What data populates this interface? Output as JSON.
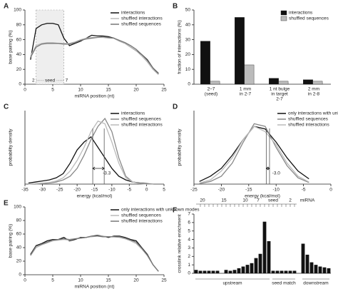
{
  "chart_data": [
    {
      "panel": "A",
      "type": "line",
      "xlabel": "miRNA position (nt)",
      "ylabel": "base pairing (%)",
      "xlim": [
        0,
        25
      ],
      "ylim": [
        0,
        100
      ],
      "xticks": [
        0,
        5,
        10,
        15,
        20,
        25
      ],
      "yticks": [
        0,
        20,
        40,
        60,
        80,
        100
      ],
      "shade": [
        2,
        7
      ],
      "shade_label": "2 ····· seed ····· 7",
      "x": [
        1,
        2,
        3,
        4,
        5,
        6,
        7,
        8,
        9,
        10,
        11,
        12,
        13,
        14,
        15,
        16,
        17,
        18,
        19,
        20,
        21,
        22,
        23,
        24
      ],
      "series": [
        {
          "name": "interactions",
          "color": "#111111",
          "values": [
            33,
            75,
            80,
            82,
            82,
            80,
            62,
            52,
            55,
            58,
            62,
            66,
            65,
            65,
            64,
            62,
            58,
            55,
            50,
            45,
            40,
            33,
            22,
            14
          ]
        },
        {
          "name": "shuffled interactions",
          "color": "#bbbbbb",
          "values": [
            38,
            52,
            55,
            56,
            56,
            55,
            55,
            55,
            57,
            60,
            62,
            63,
            63,
            63,
            62,
            62,
            58,
            55,
            50,
            45,
            38,
            30,
            20,
            13
          ]
        },
        {
          "name": "shuffled sequences",
          "color": "#777777",
          "values": [
            36,
            50,
            54,
            55,
            55,
            55,
            54,
            54,
            56,
            59,
            61,
            62,
            63,
            64,
            63,
            62,
            59,
            56,
            52,
            47,
            40,
            32,
            22,
            15
          ]
        }
      ]
    },
    {
      "panel": "B",
      "type": "bar",
      "ylabel": "fraction of interactions (%)",
      "ylim": [
        0,
        50
      ],
      "yticks": [
        0,
        10,
        20,
        30,
        40,
        50
      ],
      "categories": [
        [
          "2–7",
          "(seed)"
        ],
        [
          "1 mm",
          "in 2-7"
        ],
        [
          "1 nt bulge",
          "in target",
          "2-7"
        ],
        [
          "2 mm",
          "in 2-8"
        ]
      ],
      "series": [
        {
          "name": "interactions",
          "color": "#111111",
          "values": [
            29,
            45,
            4,
            3
          ]
        },
        {
          "name": "shuffled sequences",
          "color": "#bbbbbb",
          "values": [
            2,
            13,
            2,
            2
          ]
        }
      ]
    },
    {
      "panel": "C",
      "type": "line",
      "xlabel": "energy (kcal/mol)",
      "ylabel": "probability density",
      "xlim": [
        -35,
        5
      ],
      "ylim": [
        0,
        0.14
      ],
      "xticks": [
        -35,
        -30,
        -25,
        -20,
        -15,
        -10,
        -5,
        0,
        5
      ],
      "vlines": [
        -15.5,
        -12.2
      ],
      "annotation": "-3.3",
      "x": [
        -34,
        -32,
        -30,
        -28,
        -26,
        -24,
        -22,
        -20,
        -18,
        -16,
        -14,
        -12,
        -10,
        -8,
        -6,
        -4,
        -2,
        0,
        2
      ],
      "series": [
        {
          "name": "interactions",
          "color": "#111111",
          "values": [
            0.002,
            0.004,
            0.006,
            0.008,
            0.012,
            0.02,
            0.04,
            0.065,
            0.08,
            0.09,
            0.07,
            0.05,
            0.03,
            0.015,
            0.008,
            0.004,
            0.002,
            0.001,
            0
          ]
        },
        {
          "name": "shuffled sequences",
          "color": "#888888",
          "values": [
            0,
            0,
            0.001,
            0.002,
            0.004,
            0.008,
            0.015,
            0.03,
            0.055,
            0.085,
            0.11,
            0.125,
            0.1,
            0.05,
            0.015,
            0.004,
            0.001,
            0,
            0
          ]
        },
        {
          "name": "shuffled interactions",
          "color": "#bbbbbb",
          "values": [
            0,
            0.001,
            0.002,
            0.003,
            0.006,
            0.012,
            0.025,
            0.045,
            0.07,
            0.1,
            0.12,
            0.115,
            0.08,
            0.04,
            0.012,
            0.004,
            0.001,
            0,
            0
          ]
        }
      ]
    },
    {
      "panel": "D",
      "type": "line",
      "xlabel": "energy (kcal/mol)",
      "ylabel": "probability density",
      "xlim": [
        -25,
        0
      ],
      "ylim": [
        0,
        0.14
      ],
      "xticks": [
        -25,
        -20,
        -15,
        -10,
        -5,
        0
      ],
      "vlines": [
        -11.8,
        -11.2
      ],
      "annotation": "-3.0",
      "x": [
        -24,
        -22,
        -20,
        -18,
        -16,
        -14,
        -12,
        -10,
        -8,
        -6,
        -4
      ],
      "series": [
        {
          "name": "only interactions with unknown modes",
          "color": "#111111",
          "values": [
            0.005,
            0.015,
            0.03,
            0.055,
            0.085,
            0.11,
            0.105,
            0.08,
            0.05,
            0.025,
            0.01
          ]
        },
        {
          "name": "shuffled sequences",
          "color": "#888888",
          "values": [
            0.001,
            0.005,
            0.015,
            0.04,
            0.08,
            0.115,
            0.11,
            0.07,
            0.035,
            0.012,
            0.003
          ]
        },
        {
          "name": "shuffled interactions",
          "color": "#bbbbbb",
          "values": [
            0.002,
            0.008,
            0.025,
            0.05,
            0.085,
            0.11,
            0.1,
            0.075,
            0.04,
            0.015,
            0.004
          ]
        }
      ]
    },
    {
      "panel": "E",
      "type": "line",
      "xlabel": "miRNA position (nt)",
      "ylabel": "base pairing (%)",
      "xlim": [
        0,
        25
      ],
      "ylim": [
        0,
        100
      ],
      "xticks": [
        0,
        5,
        10,
        15,
        20,
        25
      ],
      "yticks": [
        0,
        20,
        40,
        60,
        80,
        100
      ],
      "x": [
        1,
        2,
        3,
        4,
        5,
        6,
        7,
        8,
        9,
        10,
        11,
        12,
        13,
        14,
        15,
        16,
        17,
        18,
        19,
        20,
        21,
        22,
        23,
        24
      ],
      "series": [
        {
          "name": "only interactions with unknown modes",
          "color": "#111111",
          "values": [
            30,
            43,
            46,
            50,
            52,
            52,
            55,
            50,
            52,
            55,
            55,
            57,
            58,
            57,
            55,
            57,
            57,
            55,
            52,
            50,
            40,
            30,
            15,
            5
          ]
        },
        {
          "name": "shuffled sequences",
          "color": "#bbbbbb",
          "values": [
            28,
            40,
            44,
            47,
            50,
            51,
            52,
            51,
            53,
            54,
            55,
            56,
            57,
            57,
            56,
            56,
            55,
            53,
            50,
            46,
            38,
            28,
            15,
            5
          ]
        },
        {
          "name": "shuffled interactions",
          "color": "#777777",
          "values": [
            29,
            42,
            45,
            48,
            51,
            52,
            53,
            52,
            53,
            54,
            55,
            57,
            57,
            56,
            56,
            56,
            56,
            54,
            51,
            48,
            39,
            29,
            15,
            5
          ]
        }
      ]
    },
    {
      "panel": "F",
      "type": "bar",
      "ylabel": "crosslink relative enrichment",
      "ylim": [
        0,
        7
      ],
      "yticks": [
        0,
        1,
        2,
        3,
        4,
        5,
        6,
        7
      ],
      "color": "#111111",
      "categories": [
        null,
        null,
        null,
        null,
        null,
        null,
        null,
        null,
        null,
        null,
        null,
        null,
        null,
        null,
        null,
        null,
        null,
        null,
        null,
        null,
        null,
        null,
        null,
        null,
        null,
        null,
        null,
        null,
        null,
        null,
        null,
        null
      ],
      "values": [
        0.4,
        0.3,
        0.3,
        0.3,
        0.3,
        0.3,
        null,
        0.4,
        0.3,
        0.4,
        0.6,
        0.8,
        1.0,
        1.2,
        1.8,
        2.3,
        6.1,
        3.8,
        0.3,
        0.3,
        0.3,
        0.3,
        0.3,
        0.3,
        null,
        3.5,
        2.2,
        1.3,
        1.0,
        0.8,
        0.7,
        0.6
      ],
      "top_labels": [
        "20",
        "15",
        "10",
        "7",
        "seed",
        "2",
        "miRNA"
      ],
      "region_labels": [
        "upstream",
        "seed match",
        "downstream"
      ]
    }
  ]
}
